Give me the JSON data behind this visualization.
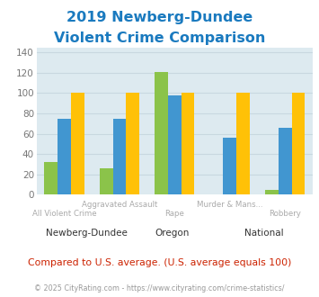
{
  "title_line1": "2019 Newberg-Dundee",
  "title_line2": "Violent Crime Comparison",
  "title_color": "#1a7abf",
  "series": {
    "Newberg-Dundee": {
      "values": [
        32,
        26,
        121,
        0,
        5
      ],
      "color": "#8bc34a"
    },
    "Oregon": {
      "values": [
        75,
        75,
        98,
        56,
        66
      ],
      "color": "#4196d0"
    },
    "National": {
      "values": [
        100,
        100,
        100,
        100,
        100
      ],
      "color": "#ffc107"
    }
  },
  "null_bars": [
    false,
    false,
    false,
    true,
    false
  ],
  "label_top": [
    "",
    "Aggravated Assault",
    "",
    "Murder & Mans...",
    ""
  ],
  "label_bot": [
    "All Violent Crime",
    "",
    "Rape",
    "",
    "Robbery"
  ],
  "ylim": [
    0,
    145
  ],
  "yticks": [
    0,
    20,
    40,
    60,
    80,
    100,
    120,
    140
  ],
  "grid_color": "#c8d8e0",
  "plot_bg_color": "#ddeaf0",
  "footer_text": "Compared to U.S. average. (U.S. average equals 100)",
  "footer_color": "#cc2200",
  "copyright_text": "© 2025 CityRating.com - https://www.cityrating.com/crime-statistics/",
  "copyright_color": "#999999",
  "xlabel_color": "#aaaaaa",
  "ylabel_color": "#888888",
  "legend_text_color": "#333333",
  "bar_width": 0.24,
  "n_cats": 5,
  "n_series": 3
}
